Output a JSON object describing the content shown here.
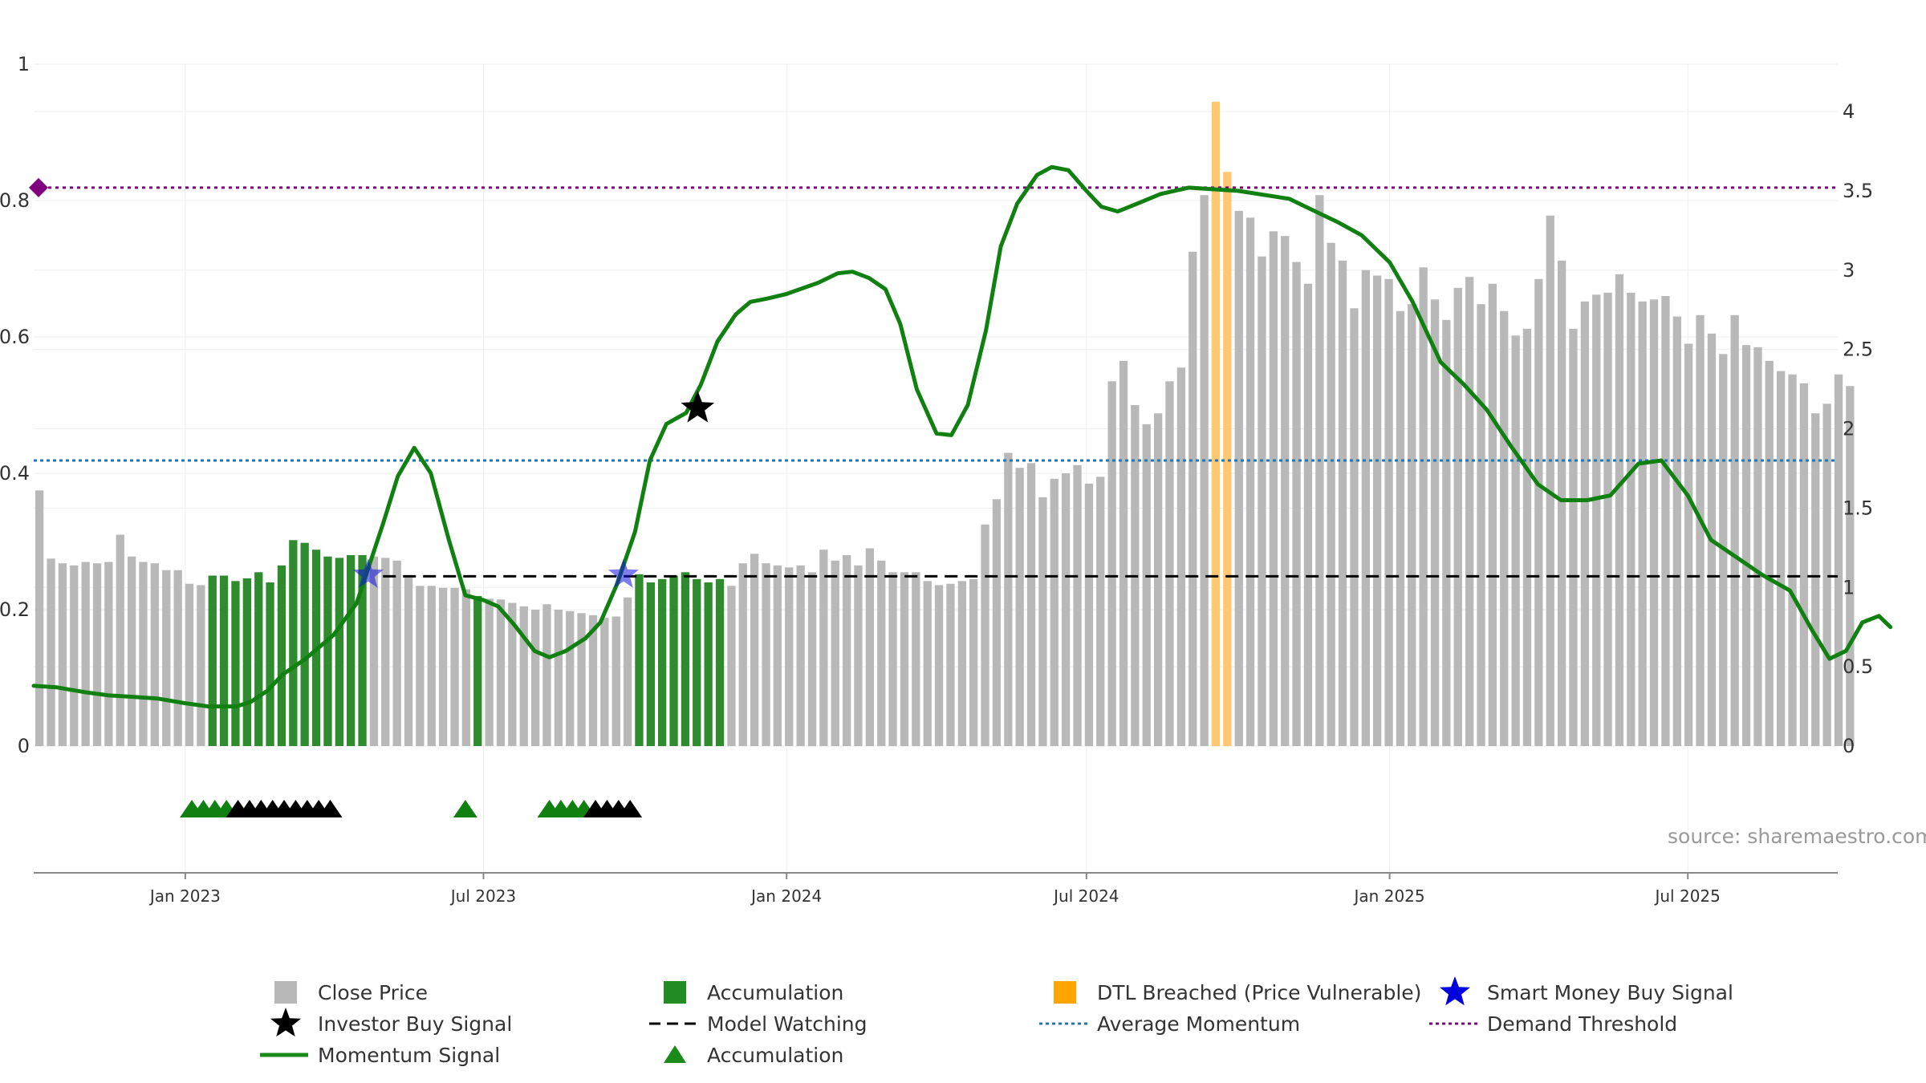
{
  "chart_data": {
    "type": "bar",
    "title": "",
    "source": "source: sharemaestro.com",
    "left_axis": {
      "ylim": [
        0,
        1.0
      ],
      "ticks": [
        0,
        0.2,
        0.4,
        0.6,
        0.8,
        1
      ],
      "tick_labels": [
        "0",
        "0.2",
        "0.4",
        "0.6",
        "0.8",
        "1"
      ]
    },
    "right_axis": {
      "ylim": [
        0,
        4.1
      ],
      "ticks": [
        0,
        0.5,
        1,
        1.5,
        2,
        2.5,
        3,
        3.5,
        4
      ],
      "tick_labels": [
        "0",
        "0.5",
        "1",
        "1.5",
        "2",
        "2.5",
        "3",
        "3.5",
        "4"
      ]
    },
    "x_axis": {
      "range": [
        "2022-10-01",
        "2025-09-30"
      ],
      "ticks": [
        "2023-01-01",
        "2023-07-01",
        "2024-01-01",
        "2024-07-01",
        "2025-01-01",
        "2025-07-01"
      ],
      "tick_labels": [
        "Jan 2023",
        "Jul 2023",
        "Jan 2024",
        "Jul 2024",
        "Jan 2025",
        "Jul 2025"
      ]
    },
    "grid": true,
    "bar_start": "2022-10-01",
    "bar_interval_days": 7,
    "close_price": [
      0.375,
      0.275,
      0.268,
      0.265,
      0.27,
      0.268,
      0.27,
      0.31,
      0.278,
      0.27,
      0.268,
      0.258,
      0.258,
      0.238,
      0.236,
      0.25,
      0.25,
      0.242,
      0.246,
      0.255,
      0.24,
      0.265,
      0.302,
      0.298,
      0.288,
      0.278,
      0.276,
      0.28,
      0.28,
      0.278,
      0.276,
      0.272,
      0.248,
      0.235,
      0.235,
      0.232,
      0.232,
      0.23,
      0.22,
      0.216,
      0.215,
      0.21,
      0.205,
      0.2,
      0.208,
      0.2,
      0.198,
      0.195,
      0.192,
      0.188,
      0.19,
      0.218,
      0.252,
      0.24,
      0.245,
      0.25,
      0.255,
      0.245,
      0.24,
      0.245,
      0.235,
      0.268,
      0.282,
      0.268,
      0.265,
      0.262,
      0.265,
      0.255,
      0.288,
      0.272,
      0.28,
      0.265,
      0.29,
      0.272,
      0.255,
      0.255,
      0.255,
      0.242,
      0.236,
      0.238,
      0.242,
      0.245,
      0.325,
      0.362,
      0.43,
      0.408,
      0.415,
      0.365,
      0.392,
      0.4,
      0.412,
      0.385,
      0.395,
      0.535,
      0.565,
      0.5,
      0.472,
      0.488,
      0.535,
      0.555,
      0.725,
      0.808,
      0.945,
      0.842,
      0.785,
      0.775,
      0.718,
      0.755,
      0.748,
      0.71,
      0.678,
      0.808,
      0.738,
      0.712,
      0.642,
      0.698,
      0.69,
      0.685,
      0.638,
      0.648,
      0.702,
      0.655,
      0.625,
      0.672,
      0.688,
      0.648,
      0.678,
      0.638,
      0.602,
      0.612,
      0.685,
      0.778,
      0.712,
      0.612,
      0.652,
      0.662,
      0.665,
      0.692,
      0.665,
      0.652,
      0.655,
      0.66,
      0.63,
      0.59,
      0.632,
      0.605,
      0.575,
      0.632,
      0.588,
      0.585,
      0.565,
      0.55,
      0.545,
      0.532,
      0.488,
      0.502,
      0.545,
      0.528
    ],
    "bar_categories": [
      {
        "state": "accumulation",
        "from": 15,
        "to": 28
      },
      {
        "state": "accumulation",
        "from": 38,
        "to": 38
      },
      {
        "state": "accumulation",
        "from": 52,
        "to": 59
      },
      {
        "state": "dtl_breached",
        "from": 102,
        "to": 103
      }
    ],
    "momentum_signal": [
      [
        "2022-10-01",
        0.38
      ],
      [
        "2022-10-15",
        0.37
      ],
      [
        "2022-11-01",
        0.34
      ],
      [
        "2022-11-15",
        0.32
      ],
      [
        "2022-12-01",
        0.31
      ],
      [
        "2022-12-15",
        0.3
      ],
      [
        "2023-01-01",
        0.27
      ],
      [
        "2023-01-15",
        0.25
      ],
      [
        "2023-02-01",
        0.25
      ],
      [
        "2023-02-10",
        0.28
      ],
      [
        "2023-02-20",
        0.35
      ],
      [
        "2023-03-01",
        0.45
      ],
      [
        "2023-03-15",
        0.55
      ],
      [
        "2023-04-01",
        0.7
      ],
      [
        "2023-04-15",
        0.9
      ],
      [
        "2023-05-01",
        1.4
      ],
      [
        "2023-05-10",
        1.7
      ],
      [
        "2023-05-20",
        1.88
      ],
      [
        "2023-05-30",
        1.72
      ],
      [
        "2023-06-10",
        1.3
      ],
      [
        "2023-06-20",
        0.95
      ],
      [
        "2023-07-01",
        0.92
      ],
      [
        "2023-07-10",
        0.88
      ],
      [
        "2023-07-20",
        0.76
      ],
      [
        "2023-08-01",
        0.6
      ],
      [
        "2023-08-10",
        0.56
      ],
      [
        "2023-08-20",
        0.6
      ],
      [
        "2023-09-01",
        0.68
      ],
      [
        "2023-09-10",
        0.78
      ],
      [
        "2023-09-20",
        1.02
      ],
      [
        "2023-10-01",
        1.35
      ],
      [
        "2023-10-10",
        1.8
      ],
      [
        "2023-10-20",
        2.03
      ],
      [
        "2023-11-01",
        2.1
      ],
      [
        "2023-11-10",
        2.28
      ],
      [
        "2023-11-20",
        2.55
      ],
      [
        "2023-12-01",
        2.72
      ],
      [
        "2023-12-10",
        2.8
      ],
      [
        "2023-12-20",
        2.82
      ],
      [
        "2024-01-01",
        2.85
      ],
      [
        "2024-01-20",
        2.92
      ],
      [
        "2024-02-01",
        2.98
      ],
      [
        "2024-02-10",
        2.99
      ],
      [
        "2024-02-20",
        2.95
      ],
      [
        "2024-03-01",
        2.88
      ],
      [
        "2024-03-10",
        2.66
      ],
      [
        "2024-03-20",
        2.25
      ],
      [
        "2024-04-01",
        1.97
      ],
      [
        "2024-04-10",
        1.96
      ],
      [
        "2024-04-20",
        2.15
      ],
      [
        "2024-05-01",
        2.62
      ],
      [
        "2024-05-10",
        3.15
      ],
      [
        "2024-05-20",
        3.42
      ],
      [
        "2024-06-01",
        3.6
      ],
      [
        "2024-06-10",
        3.65
      ],
      [
        "2024-06-20",
        3.63
      ],
      [
        "2024-07-01",
        3.5
      ],
      [
        "2024-07-10",
        3.4
      ],
      [
        "2024-07-20",
        3.37
      ],
      [
        "2024-08-01",
        3.42
      ],
      [
        "2024-08-15",
        3.48
      ],
      [
        "2024-09-01",
        3.52
      ],
      [
        "2024-10-01",
        3.5
      ],
      [
        "2024-11-01",
        3.45
      ],
      [
        "2024-12-01",
        3.3
      ],
      [
        "2024-12-15",
        3.22
      ],
      [
        "2025-01-01",
        3.05
      ],
      [
        "2025-01-15",
        2.8
      ],
      [
        "2025-02-01",
        2.42
      ],
      [
        "2025-02-15",
        2.28
      ],
      [
        "2025-03-01",
        2.12
      ],
      [
        "2025-03-15",
        1.9
      ],
      [
        "2025-04-01",
        1.65
      ],
      [
        "2025-04-15",
        1.55
      ],
      [
        "2025-05-01",
        1.55
      ],
      [
        "2025-05-15",
        1.58
      ],
      [
        "2025-06-01",
        1.78
      ],
      [
        "2025-06-15",
        1.8
      ],
      [
        "2025-07-01",
        1.58
      ],
      [
        "2025-07-15",
        1.3
      ],
      [
        "2025-08-01",
        1.18
      ],
      [
        "2025-08-15",
        1.08
      ],
      [
        "2025-09-01",
        0.98
      ],
      [
        "2025-09-15",
        0.72
      ],
      [
        "2025-09-25",
        0.55
      ],
      [
        "2025-10-05",
        0.6
      ],
      [
        "2025-10-15",
        0.78
      ],
      [
        "2025-10-25",
        0.82
      ],
      [
        "2025-11-01",
        0.75
      ]
    ],
    "model_watching": {
      "value": 1.07,
      "segments": [
        [
          "2023-05-01",
          "2025-11-01"
        ]
      ],
      "style": "dash"
    },
    "average_momentum": 1.8,
    "demand_threshold": 3.52,
    "investor_buy_signals": [
      [
        "2023-11-08",
        2.13
      ]
    ],
    "smart_money_buy_signals": [
      [
        "2023-04-22",
        1.08
      ],
      [
        "2023-09-24",
        1.08
      ]
    ],
    "accumulation_markers": [
      "2023-01-05",
      "2023-01-12",
      "2023-01-19",
      "2023-01-26",
      "2023-06-20",
      "2023-08-10",
      "2023-08-17",
      "2023-08-24",
      "2023-08-31"
    ],
    "watching_markers": [
      "2023-02-02",
      "2023-02-09",
      "2023-02-16",
      "2023-02-23",
      "2023-03-02",
      "2023-03-09",
      "2023-03-16",
      "2023-03-23",
      "2023-03-30",
      "2023-09-07",
      "2023-09-14",
      "2023-09-21",
      "2023-09-28"
    ],
    "legend": [
      {
        "label": "Close Price",
        "symbol": "square",
        "color": "#b8b8b8"
      },
      {
        "label": "Accumulation",
        "symbol": "square",
        "color": "#228b22"
      },
      {
        "label": "DTL Breached (Price Vulnerable)",
        "symbol": "square",
        "color": "#ffa500"
      },
      {
        "label": "Smart Money Buy Signal",
        "symbol": "star",
        "color": "#0000dd"
      },
      {
        "label": "Investor Buy Signal",
        "symbol": "star",
        "color": "#000000"
      },
      {
        "label": "Model Watching",
        "symbol": "dash",
        "color": "#000000"
      },
      {
        "label": "Average Momentum",
        "symbol": "dot",
        "color": "#1f77b4"
      },
      {
        "label": "Demand Threshold",
        "symbol": "dot",
        "color": "#800080"
      },
      {
        "label": "Momentum Signal",
        "symbol": "line",
        "color": "#1a8a1a"
      },
      {
        "label": "Accumulation",
        "symbol": "triangle",
        "color": "#1a8a1a"
      }
    ],
    "legend_position": "bottom"
  },
  "colors": {
    "close_price": "#b8b8b8",
    "accumulation": "#2e8b2e",
    "dtl_breached": "#ffc870",
    "momentum": "#108010",
    "momentum_faded": "#4a8f4a",
    "average_momentum": "#1f77b4",
    "demand_threshold": "#800080",
    "watching": "#000000",
    "smart_money": "#1010dd"
  }
}
